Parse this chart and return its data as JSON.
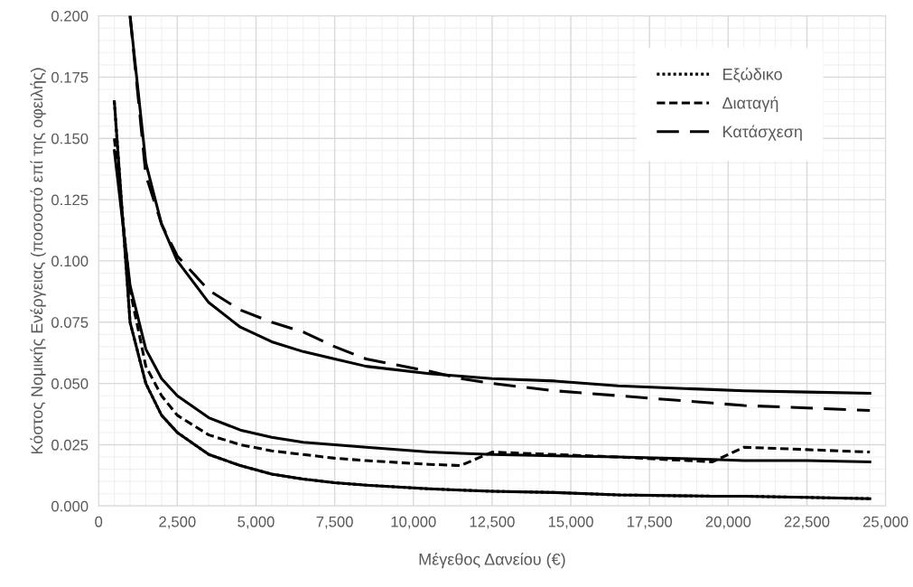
{
  "chart_data": {
    "type": "line",
    "xlabel": "Μέγεθος Δανείου (€)",
    "ylabel": "Κόστος Νομικής Ενέργειας (ποσοστό επί της οφειλής)",
    "x": [
      500,
      1000,
      1500,
      2000,
      2500,
      3500,
      4500,
      5500,
      6500,
      7500,
      8500,
      10500,
      11500,
      12500,
      14500,
      16500,
      19500,
      20500,
      22500,
      24500
    ],
    "series": [
      {
        "color": "#000000",
        "line_style": "solid",
        "values": [
          0.165,
          0.075,
          0.05,
          0.037,
          0.03,
          0.021,
          0.0165,
          0.013,
          0.011,
          0.0095,
          0.0085,
          0.007,
          0.0065,
          0.006,
          0.0055,
          0.0045,
          0.004,
          0.004,
          0.0035,
          0.003
        ]
      },
      {
        "color": "#000000",
        "line_style": "solid",
        "values": [
          0.145,
          0.09,
          0.064,
          0.052,
          0.045,
          0.036,
          0.031,
          0.028,
          0.026,
          0.025,
          0.024,
          0.022,
          0.0215,
          0.021,
          0.0205,
          0.02,
          0.019,
          0.0185,
          0.0185,
          0.018
        ]
      },
      {
        "color": "#000000",
        "line_style": "solid",
        "values": [
          null,
          0.2,
          0.14,
          0.115,
          0.1,
          0.083,
          0.073,
          0.067,
          0.063,
          0.06,
          0.057,
          0.054,
          0.053,
          0.052,
          0.051,
          0.049,
          0.0475,
          0.047,
          0.0465,
          0.046
        ]
      },
      {
        "name": "Εξώδικο",
        "color": "#000000",
        "line_style": "dotted",
        "values": [
          0.165,
          0.075,
          0.05,
          0.037,
          0.03,
          0.021,
          0.0165,
          0.013,
          0.011,
          0.0095,
          0.0085,
          0.007,
          0.0065,
          0.006,
          0.0055,
          0.0045,
          0.004,
          0.004,
          0.0035,
          0.003
        ]
      },
      {
        "name": "Διαταγή",
        "color": "#000000",
        "line_style": "dashed",
        "values": [
          0.15,
          0.088,
          0.057,
          0.045,
          0.037,
          0.029,
          0.025,
          0.0225,
          0.021,
          0.0195,
          0.0185,
          0.017,
          0.0165,
          0.022,
          0.021,
          0.02,
          0.018,
          0.024,
          0.023,
          0.022
        ]
      },
      {
        "name": "Κατάσχεση",
        "color": "#000000",
        "line_style": "longdash",
        "values": [
          null,
          0.2,
          0.135,
          0.115,
          0.102,
          0.088,
          0.08,
          0.075,
          0.071,
          0.065,
          0.06,
          0.055,
          0.052,
          0.05,
          0.047,
          0.045,
          0.042,
          0.041,
          0.04,
          0.039
        ]
      }
    ],
    "xlim": [
      0,
      25000
    ],
    "xticks": [
      0,
      {
        "value": 2500,
        "label": "2,500"
      },
      {
        "value": 5000,
        "label": "5,000"
      },
      {
        "value": 7500,
        "label": "7,500"
      },
      {
        "value": 10000,
        "label": "10,000"
      },
      {
        "value": 12500,
        "label": "12,500"
      },
      {
        "value": 15000,
        "label": "15,000"
      },
      {
        "value": 17500,
        "label": "17,500"
      },
      {
        "value": 20000,
        "label": "20,000"
      },
      {
        "value": 22500,
        "label": "22,500"
      },
      {
        "value": 25000,
        "label": "25,000"
      }
    ],
    "ylim": [
      0,
      0.2
    ],
    "yticks": [
      {
        "value": 0,
        "label": "0.000"
      },
      {
        "value": 0.025,
        "label": "0.025"
      },
      {
        "value": 0.05,
        "label": "0.050"
      },
      {
        "value": 0.075,
        "label": "0.075"
      },
      {
        "value": 0.1,
        "label": "0.100"
      },
      {
        "value": 0.125,
        "label": "0.125"
      },
      {
        "value": 0.15,
        "label": "0.150"
      },
      {
        "value": 0.175,
        "label": "0.175"
      },
      {
        "value": 0.2,
        "label": "0.200"
      }
    ],
    "grid": true,
    "legend": "top right",
    "marker": "none"
  }
}
